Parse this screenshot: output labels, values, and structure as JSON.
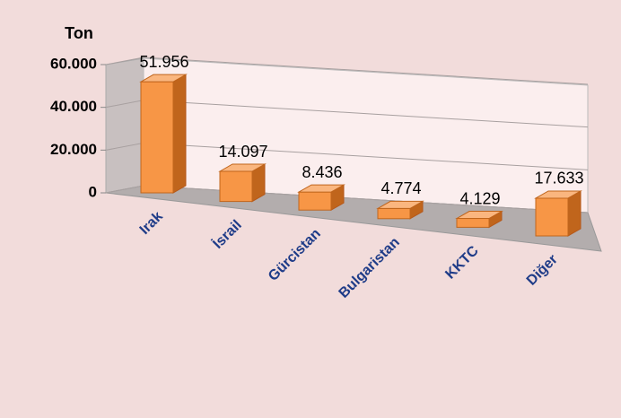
{
  "chart_data": {
    "type": "bar3d",
    "y_axis_label": "Ton",
    "categories": [
      "Irak",
      "İsrail",
      "Gürcistan",
      "Bulgaristan",
      "KKTC",
      "Diğer"
    ],
    "values": [
      51956,
      14097,
      8436,
      4774,
      4129,
      17633
    ],
    "value_labels": [
      "51.956",
      "14.097",
      "8.436",
      "4.774",
      "4.129",
      "17.633"
    ],
    "color": "#f79646",
    "ylim": [
      0,
      60000
    ],
    "yticks": [
      0,
      {
        "value": 20000,
        "label": "20.000"
      },
      {
        "value": 40000,
        "label": "40.000"
      },
      {
        "value": 60000,
        "label": "60.000"
      }
    ],
    "grid": true
  }
}
